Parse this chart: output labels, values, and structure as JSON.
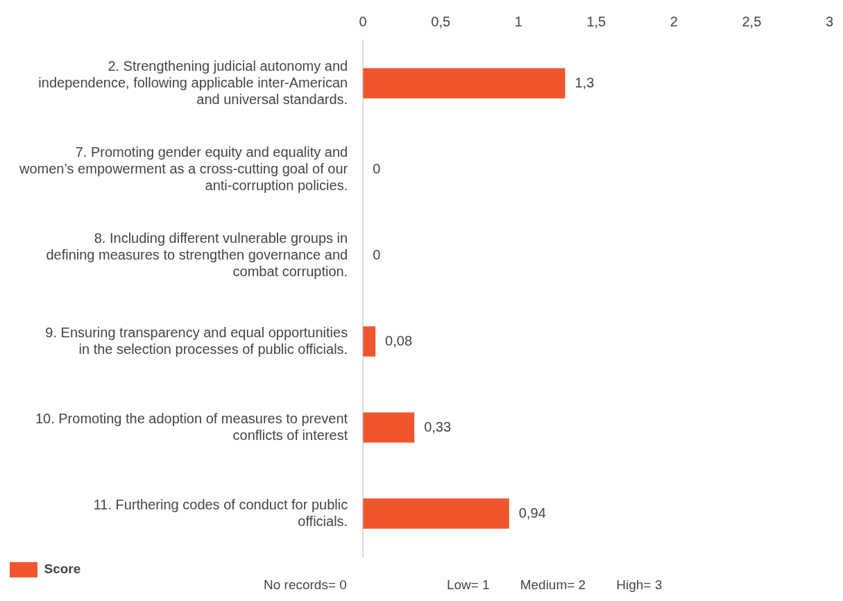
{
  "chart_data": {
    "type": "bar",
    "orientation": "horizontal",
    "categories": [
      "2. Strengthening judicial autonomy and independence, following applicable inter-American and universal standards.",
      "7. Promoting gender equity and equality and women’s empowerment as a cross-cutting goal of our anti-corruption policies.",
      "8. Including different vulnerable groups in defining measures to strengthen governance and combat corruption.",
      "9. Ensuring transparency and equal opportunities in the selection processes of public officials.",
      "10. Promoting the adoption of measures to prevent conflicts of interest",
      "11. Furthering codes of conduct for public officials."
    ],
    "series": [
      {
        "name": "Score",
        "color": "#f0562e",
        "values": [
          1.3,
          0,
          0,
          0.08,
          0.33,
          0.94
        ],
        "value_labels": [
          "1,3",
          "0",
          "0",
          "0,08",
          "0,33",
          "0,94"
        ]
      }
    ],
    "xlim": [
      0,
      3
    ],
    "xticks": [
      0,
      {
        "value": 0.5,
        "label": "0,5"
      },
      1,
      {
        "value": 1.5,
        "label": "1,5"
      },
      2,
      {
        "value": 2.5,
        "label": "2,5"
      },
      3
    ],
    "grid": false,
    "legend": "bottom",
    "annotations": [
      "No records= 0",
      "Low= 1",
      "Medium= 2",
      "High= 3"
    ]
  }
}
